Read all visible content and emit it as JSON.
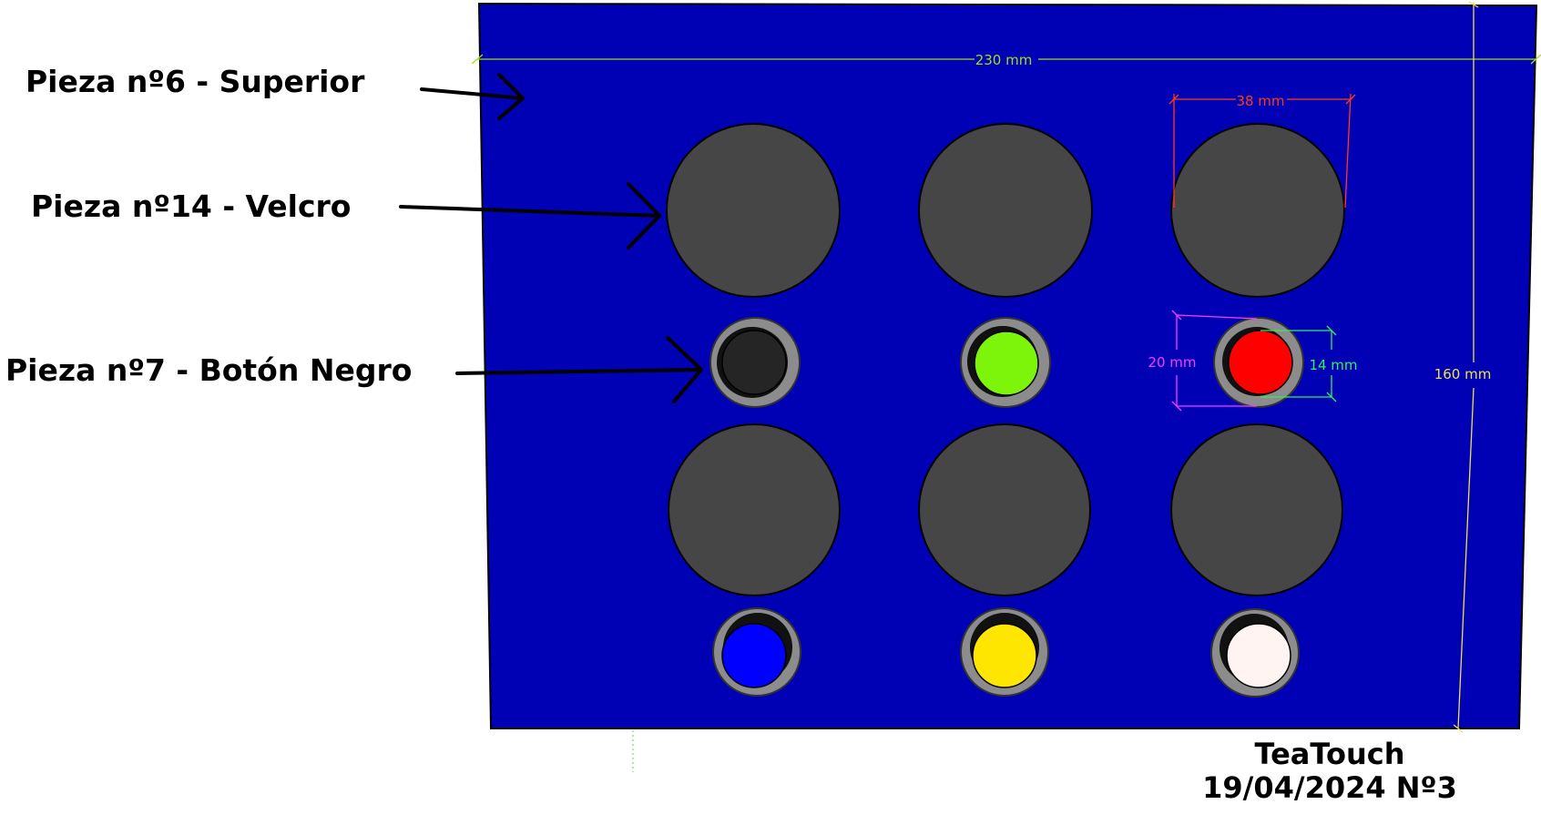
{
  "labels": {
    "superior": "Pieza nº6 - Superior",
    "velcro": "Pieza nº14 - Velcro",
    "boton": "Pieza nº7 - Botón Negro"
  },
  "dimensions": {
    "width": "230 mm",
    "height": "160 mm",
    "velcro_diameter": "38 mm",
    "ring_diameter": "20 mm",
    "button_diameter": "14 mm"
  },
  "footer": {
    "line1": "TeaTouch",
    "line2": "19/04/2024 Nº3"
  },
  "colors": {
    "panel": "#0000b4",
    "velcro": "#464646",
    "ring": "#8c8c8c",
    "dim_width": "#9be020",
    "dim_height": "#f0e050",
    "dim_velcro": "#ff3a1a",
    "dim_ring": "#ff3bff",
    "dim_button": "#2ff05a"
  },
  "buttons": [
    {
      "name": "black",
      "color": "#252525"
    },
    {
      "name": "green",
      "color": "#7cf50a"
    },
    {
      "name": "red",
      "color": "#ff0000"
    },
    {
      "name": "blue",
      "color": "#0000ff"
    },
    {
      "name": "yellow",
      "color": "#ffe600"
    },
    {
      "name": "white",
      "color": "#fff4f2"
    }
  ]
}
